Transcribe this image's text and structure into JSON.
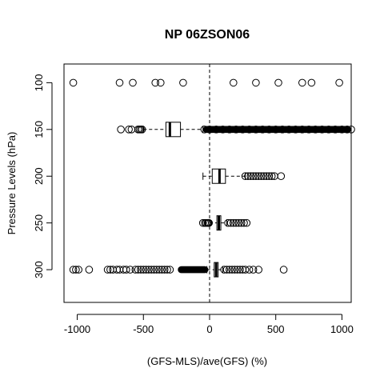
{
  "chart_data": {
    "type": "boxplot",
    "title": "NP 06ZSON06",
    "xlabel": "(GFS-MLS)/ave(GFS) (%)",
    "ylabel": "Pressure Levels (hPa)",
    "x_ticks": [
      -1000,
      -500,
      0,
      500,
      1000
    ],
    "x_tick_labels": [
      "-1000",
      "-500",
      "0",
      "500",
      "1000"
    ],
    "xlim": [
      -1100,
      1070
    ],
    "ylim_levels": [
      80,
      335
    ],
    "y_tick_labels": [
      "100",
      "150",
      "200",
      "250",
      "300"
    ],
    "reference_line_x": 0,
    "grid": false,
    "levels": [
      {
        "level": 100,
        "box": null,
        "outliers": [
          -1030,
          -680,
          -580,
          -410,
          -370,
          -200,
          180,
          350,
          520,
          700,
          770,
          980
        ]
      },
      {
        "level": 150,
        "box": {
          "whisker_low": -500,
          "q1": -330,
          "median": -300,
          "q3": -220,
          "whisker_high": -50
        },
        "outliers_low": [
          -670,
          -610,
          -590,
          -540,
          -530,
          -520,
          -510
        ],
        "outliers_high_range": [
          -50,
          1070
        ],
        "outliers_high_sample": [
          -40,
          0,
          50,
          100,
          150,
          200,
          250,
          300,
          350,
          400,
          450,
          500,
          550,
          600,
          650,
          700,
          750,
          800,
          850,
          900,
          950,
          1000,
          1040,
          1070
        ]
      },
      {
        "level": 200,
        "box": {
          "whisker_low": -50,
          "q1": 20,
          "median": 75,
          "q3": 120,
          "whisker_high": 270
        },
        "outliers_high": [
          270,
          290,
          310,
          330,
          350,
          370,
          390,
          410,
          430,
          450,
          470,
          490,
          540
        ]
      },
      {
        "level": 250,
        "box": {
          "whisker_low": 0,
          "q1": 55,
          "median": 70,
          "q3": 85,
          "whisker_high": 130
        },
        "outliers_low": [
          -50,
          -35,
          -25,
          -15,
          -10,
          -5
        ],
        "outliers_high": [
          140,
          160,
          180,
          200,
          220,
          240,
          260,
          280
        ]
      },
      {
        "level": 300,
        "box": {
          "whisker_low": -20,
          "q1": 35,
          "median": 50,
          "q3": 65,
          "whisker_high": 100
        },
        "outliers_low_far": [
          -1030,
          -1010,
          -990,
          -910,
          -770,
          -750,
          -730,
          -700,
          -680,
          -650,
          -630,
          -600,
          -560,
          -540,
          -520,
          -500,
          -480,
          -460,
          -440,
          -420,
          -400,
          -380,
          -360,
          -340,
          -320,
          -300
        ],
        "outliers_low_dense_range": [
          -240,
          -10
        ],
        "outliers_high": [
          110,
          130,
          150,
          170,
          190,
          210,
          230,
          250,
          270,
          300,
          330,
          370,
          560
        ]
      }
    ]
  }
}
